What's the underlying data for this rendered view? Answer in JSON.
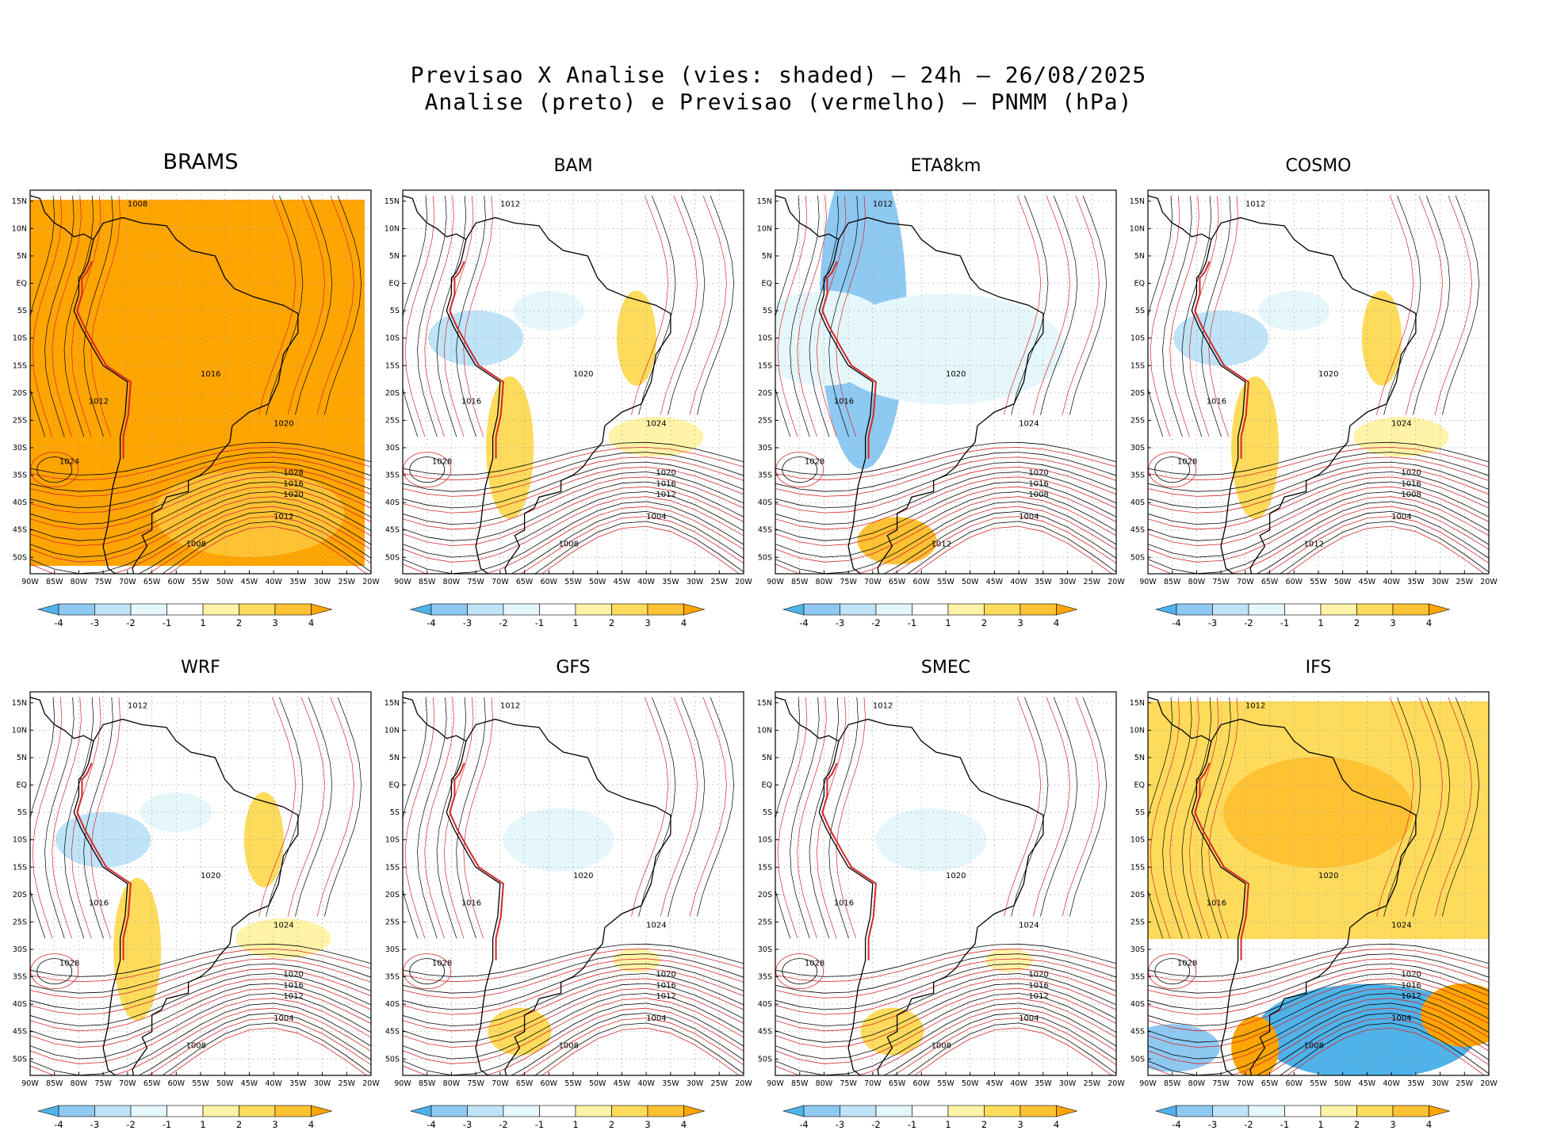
{
  "title_line1": "Previsao X Analise (vies: shaded) – 24h – 26/08/2025",
  "title_line2": "Analise (preto) e Previsao (vermelho) – PNMM (hPa)",
  "lat_labels": [
    "15N",
    "10N",
    "5N",
    "EQ",
    "5S",
    "10S",
    "15S",
    "20S",
    "25S",
    "30S",
    "35S",
    "40S",
    "45S",
    "50S"
  ],
  "lon_labels": [
    "90W",
    "85W",
    "80W",
    "75W",
    "70W",
    "65W",
    "60W",
    "55W",
    "50W",
    "45W",
    "40W",
    "35W",
    "30W",
    "25W",
    "20W"
  ],
  "colorbar": {
    "labels": [
      "-4",
      "-3",
      "-2",
      "-1",
      "1",
      "2",
      "3",
      "4"
    ],
    "colors": [
      "#4fb3ea",
      "#8ec9f2",
      "#bfe3f7",
      "#e6f7fb",
      "#ffffff",
      "#fff3a8",
      "#ffdb5c",
      "#ffc233",
      "#ffa500"
    ]
  },
  "panels": [
    {
      "name": "BRAMS",
      "bias": "warm-all",
      "labels": [
        "1008",
        "1012",
        "1016",
        "1020",
        "1024",
        "1028",
        "1016",
        "1020",
        "1012",
        "1008"
      ]
    },
    {
      "name": "BAM",
      "bias": "mixed",
      "labels": [
        "1012",
        "1016",
        "1020",
        "1024",
        "1028",
        "1020",
        "1016",
        "1012",
        "1004",
        "1008"
      ]
    },
    {
      "name": "ETA8km",
      "bias": "cool",
      "labels": [
        "1012",
        "1016",
        "1020",
        "1024",
        "1028",
        "1020",
        "1016",
        "1008",
        "1004",
        "1012"
      ]
    },
    {
      "name": "COSMO",
      "bias": "mixed",
      "labels": [
        "1012",
        "1016",
        "1020",
        "1024",
        "1028",
        "1020",
        "1016",
        "1008",
        "1004",
        "1012"
      ]
    },
    {
      "name": "WRF",
      "bias": "mixed",
      "labels": [
        "1012",
        "1016",
        "1020",
        "1024",
        "1028",
        "1020",
        "1016",
        "1012",
        "1004",
        "1008"
      ]
    },
    {
      "name": "GFS",
      "bias": "light",
      "labels": [
        "1012",
        "1016",
        "1020",
        "1024",
        "1028",
        "1020",
        "1016",
        "1012",
        "1004",
        "1008"
      ]
    },
    {
      "name": "SMEC",
      "bias": "light",
      "labels": [
        "1012",
        "1016",
        "1020",
        "1024",
        "1028",
        "1020",
        "1016",
        "1012",
        "1004",
        "1008"
      ]
    },
    {
      "name": "IFS",
      "bias": "strong",
      "labels": [
        "1012",
        "1016",
        "1020",
        "1024",
        "1028",
        "1020",
        "1016",
        "1012",
        "1004",
        "1008"
      ]
    }
  ]
}
